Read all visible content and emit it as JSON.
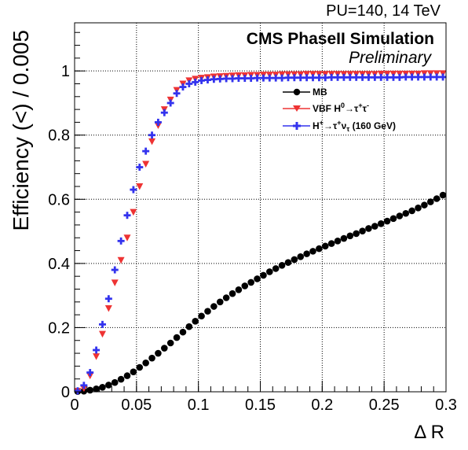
{
  "header": {
    "pileup_energy": "PU=140, 14 TeV",
    "cms_label": "CMS PhaseII Simulation",
    "preliminary": "Preliminary"
  },
  "chart_data": {
    "type": "scatter",
    "xlabel": "Δ R",
    "ylabel": "Efficiency (<) / 0.005",
    "xlim": [
      0,
      0.3
    ],
    "ylim": [
      0,
      1.15
    ],
    "xticks": [
      "0",
      "0.05",
      "0.1",
      "0.15",
      "0.2",
      "0.25",
      "0.3"
    ],
    "yticks": [
      "0",
      "0.2",
      "0.4",
      "0.6",
      "0.8",
      "1"
    ],
    "grid": true,
    "legend_position": "top-right",
    "series": [
      {
        "name": "MB",
        "marker": "circle",
        "color": "#000000",
        "x": [
          0.0025,
          0.0075,
          0.0125,
          0.0175,
          0.0225,
          0.0275,
          0.0325,
          0.0375,
          0.0425,
          0.0475,
          0.0525,
          0.0575,
          0.0625,
          0.0675,
          0.0725,
          0.0775,
          0.0825,
          0.0875,
          0.0925,
          0.0975,
          0.1025,
          0.1075,
          0.1125,
          0.1175,
          0.1225,
          0.1275,
          0.1325,
          0.1375,
          0.1425,
          0.1475,
          0.1525,
          0.1575,
          0.1625,
          0.1675,
          0.1725,
          0.1775,
          0.1825,
          0.1875,
          0.1925,
          0.1975,
          0.2025,
          0.2075,
          0.2125,
          0.2175,
          0.2225,
          0.2275,
          0.2325,
          0.2375,
          0.2425,
          0.2475,
          0.2525,
          0.2575,
          0.2625,
          0.2675,
          0.2725,
          0.2775,
          0.2825,
          0.2875,
          0.2925,
          0.2975
        ],
        "y": [
          0.001,
          0.002,
          0.005,
          0.009,
          0.014,
          0.021,
          0.029,
          0.039,
          0.05,
          0.062,
          0.076,
          0.09,
          0.105,
          0.12,
          0.136,
          0.152,
          0.169,
          0.186,
          0.203,
          0.22,
          0.236,
          0.251,
          0.266,
          0.28,
          0.293,
          0.306,
          0.318,
          0.33,
          0.341,
          0.352,
          0.363,
          0.374,
          0.384,
          0.394,
          0.403,
          0.412,
          0.421,
          0.43,
          0.438,
          0.446,
          0.454,
          0.462,
          0.47,
          0.478,
          0.486,
          0.493,
          0.501,
          0.509,
          0.516,
          0.524,
          0.532,
          0.54,
          0.548,
          0.556,
          0.564,
          0.573,
          0.582,
          0.592,
          0.602,
          0.613
        ]
      },
      {
        "name": "VBF H⁰→τ⁺τ⁻",
        "marker": "triangle-down",
        "color": "#ee3333",
        "x": [
          0.0025,
          0.0075,
          0.0125,
          0.0175,
          0.0225,
          0.0275,
          0.0325,
          0.0375,
          0.0425,
          0.0475,
          0.0525,
          0.0575,
          0.0625,
          0.0675,
          0.0725,
          0.0775,
          0.0825,
          0.0875,
          0.0925,
          0.0975,
          0.1025,
          0.1075,
          0.1125,
          0.1175,
          0.1225,
          0.1275,
          0.1325,
          0.1375,
          0.1425,
          0.1475,
          0.1525,
          0.1575,
          0.1625,
          0.1675,
          0.1725,
          0.1775,
          0.1825,
          0.1875,
          0.1925,
          0.1975,
          0.2025,
          0.2075,
          0.2125,
          0.2175,
          0.2225,
          0.2275,
          0.2325,
          0.2375,
          0.2425,
          0.2475,
          0.2525,
          0.2575,
          0.2625,
          0.2675,
          0.2725,
          0.2775,
          0.2825,
          0.2875,
          0.2925,
          0.2975
        ],
        "y": [
          0.002,
          0.01,
          0.05,
          0.11,
          0.18,
          0.26,
          0.34,
          0.41,
          0.48,
          0.56,
          0.64,
          0.71,
          0.78,
          0.83,
          0.88,
          0.91,
          0.94,
          0.96,
          0.97,
          0.975,
          0.978,
          0.98,
          0.982,
          0.983,
          0.984,
          0.985,
          0.986,
          0.986,
          0.987,
          0.987,
          0.988,
          0.988,
          0.988,
          0.989,
          0.989,
          0.989,
          0.989,
          0.99,
          0.99,
          0.99,
          0.99,
          0.99,
          0.99,
          0.99,
          0.99,
          0.99,
          0.99,
          0.99,
          0.99,
          0.991,
          0.991,
          0.991,
          0.991,
          0.991,
          0.991,
          0.991,
          0.992,
          0.992,
          0.992,
          0.992
        ]
      },
      {
        "name": "H⁺→τ⁺ν_τ (160 GeV)",
        "marker": "cross",
        "color": "#3333ee",
        "x": [
          0.0025,
          0.0075,
          0.0125,
          0.0175,
          0.0225,
          0.0275,
          0.0325,
          0.0375,
          0.0425,
          0.0475,
          0.0525,
          0.0575,
          0.0625,
          0.0675,
          0.0725,
          0.0775,
          0.0825,
          0.0875,
          0.0925,
          0.0975,
          0.1025,
          0.1075,
          0.1125,
          0.1175,
          0.1225,
          0.1275,
          0.1325,
          0.1375,
          0.1425,
          0.1475,
          0.1525,
          0.1575,
          0.1625,
          0.1675,
          0.1725,
          0.1775,
          0.1825,
          0.1875,
          0.1925,
          0.1975,
          0.2025,
          0.2075,
          0.2125,
          0.2175,
          0.2225,
          0.2275,
          0.2325,
          0.2375,
          0.2425,
          0.2475,
          0.2525,
          0.2575,
          0.2625,
          0.2675,
          0.2725,
          0.2775,
          0.2825,
          0.2875,
          0.2925,
          0.2975
        ],
        "y": [
          0.003,
          0.02,
          0.06,
          0.13,
          0.21,
          0.29,
          0.38,
          0.47,
          0.55,
          0.63,
          0.7,
          0.75,
          0.8,
          0.84,
          0.87,
          0.9,
          0.93,
          0.95,
          0.96,
          0.965,
          0.97,
          0.972,
          0.974,
          0.975,
          0.976,
          0.976,
          0.977,
          0.977,
          0.977,
          0.978,
          0.978,
          0.978,
          0.978,
          0.978,
          0.979,
          0.979,
          0.979,
          0.979,
          0.979,
          0.979,
          0.979,
          0.98,
          0.98,
          0.98,
          0.98,
          0.98,
          0.98,
          0.98,
          0.98,
          0.98,
          0.98,
          0.98,
          0.98,
          0.981,
          0.981,
          0.981,
          0.981,
          0.981,
          0.981,
          0.981
        ]
      }
    ]
  },
  "legend": {
    "mb": "MB",
    "vbf_prefix": "VBF H",
    "vbf_sup": "0",
    "vbf_arrow": "→τ",
    "vbf_sup2": "+",
    "vbf_tau": "τ",
    "vbf_sup3": "-",
    "hplus_h": "H",
    "hplus_sup": "+",
    "hplus_arrow": "→τ",
    "hplus_sup2": "+",
    "hplus_nu": "ν",
    "hplus_sub": "τ",
    "hplus_mass": " (160 GeV)"
  }
}
